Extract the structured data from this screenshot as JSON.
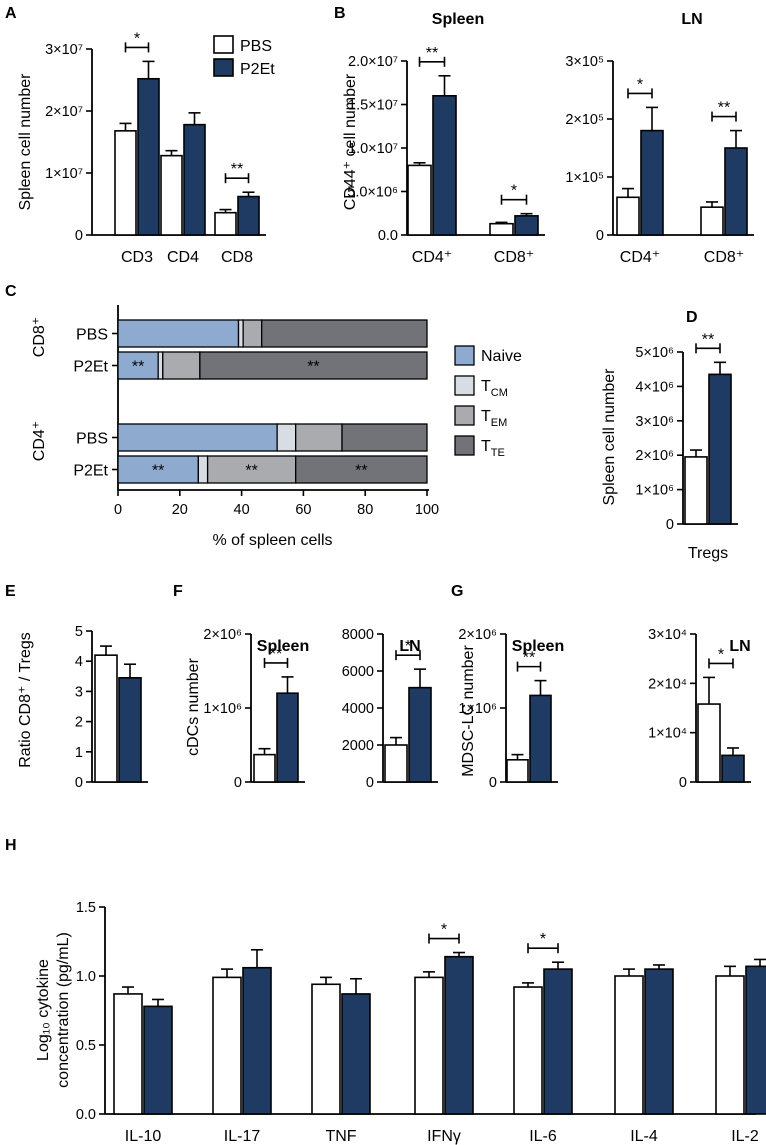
{
  "figure": {
    "palette": {
      "pbs": "#ffffff",
      "p2et": "#1f3a63",
      "naive": "#8eabcf",
      "tcm": "#d8dde3",
      "tem": "#a9abae",
      "tte": "#717378"
    }
  },
  "chart_data": [
    {
      "id": "A",
      "panel_label": "A",
      "type": "bar",
      "title": "",
      "ylabel": "Spleen cell number",
      "categories": [
        "CD3",
        "CD4",
        "CD8"
      ],
      "ylim": [
        0,
        30000000
      ],
      "yticks": [
        {
          "v": 0,
          "t": "0"
        },
        {
          "v": 10000000,
          "t": "1×10⁷"
        },
        {
          "v": 20000000,
          "t": "2×10⁷"
        },
        {
          "v": 30000000,
          "t": "3×10⁷"
        }
      ],
      "series": [
        {
          "name": "PBS",
          "values": [
            16800000,
            12800000,
            3600000
          ],
          "errors": [
            1200000,
            800000,
            500000
          ]
        },
        {
          "name": "P2Et",
          "values": [
            25200000,
            17800000,
            6200000
          ],
          "errors": [
            2800000,
            1900000,
            700000
          ]
        }
      ],
      "significance": [
        {
          "category": 0,
          "text": "*"
        },
        {
          "category": 2,
          "text": "**"
        }
      ],
      "legend": [
        "PBS",
        "P2Et"
      ]
    },
    {
      "id": "B1",
      "panel_label": "B",
      "type": "bar",
      "title": "Spleen",
      "ylabel": "CD44⁺ cell number",
      "categories": [
        "CD4⁺",
        "CD8⁺"
      ],
      "ylim": [
        0,
        20000000
      ],
      "yticks": [
        {
          "v": 0,
          "t": "0.0"
        },
        {
          "v": 5000000,
          "t": "5.0×10⁶"
        },
        {
          "v": 10000000,
          "t": "1.0×10⁷"
        },
        {
          "v": 15000000,
          "t": "1.5×10⁷"
        },
        {
          "v": 20000000,
          "t": "2.0×10⁷"
        }
      ],
      "series": [
        {
          "name": "PBS",
          "values": [
            8000000,
            1300000
          ],
          "errors": [
            300000,
            150000
          ]
        },
        {
          "name": "P2Et",
          "values": [
            16000000,
            2200000
          ],
          "errors": [
            2300000,
            250000
          ]
        }
      ],
      "significance": [
        {
          "category": 0,
          "text": "**"
        },
        {
          "category": 1,
          "text": "*"
        }
      ]
    },
    {
      "id": "B2",
      "panel_label": "",
      "type": "bar",
      "title": "LN",
      "ylabel": "",
      "categories": [
        "CD4⁺",
        "CD8⁺"
      ],
      "ylim": [
        0,
        300000
      ],
      "yticks": [
        {
          "v": 0,
          "t": "0"
        },
        {
          "v": 100000,
          "t": "1×10⁵"
        },
        {
          "v": 200000,
          "t": "2×10⁵"
        },
        {
          "v": 300000,
          "t": "3×10⁵"
        }
      ],
      "series": [
        {
          "name": "PBS",
          "values": [
            65000,
            48000
          ],
          "errors": [
            15000,
            9000
          ]
        },
        {
          "name": "P2Et",
          "values": [
            180000,
            150000
          ],
          "errors": [
            40000,
            30000
          ]
        }
      ],
      "significance": [
        {
          "category": 0,
          "text": "*"
        },
        {
          "category": 1,
          "text": "**"
        }
      ]
    },
    {
      "id": "C",
      "panel_label": "C",
      "type": "stacked-bar-horizontal",
      "xlabel": "% of spleen cells",
      "xlim": [
        0,
        100
      ],
      "xticks": [
        "0",
        "20",
        "40",
        "60",
        "80",
        "100"
      ],
      "groups": [
        "CD8⁺",
        "CD4⁺"
      ],
      "stack_keys": [
        "Naive",
        "T_CM",
        "T_EM",
        "T_TE"
      ],
      "legend": [
        {
          "main": "Naive",
          "sub": ""
        },
        {
          "main": "T",
          "sub": "CM"
        },
        {
          "main": "T",
          "sub": "EM"
        },
        {
          "main": "T",
          "sub": "TE"
        }
      ],
      "rows": [
        {
          "group": "CD8⁺",
          "label": "PBS",
          "values": [
            39,
            1.5,
            6,
            53.5
          ],
          "marks": [
            "",
            "",
            "",
            ""
          ]
        },
        {
          "group": "CD8⁺",
          "label": "P2Et",
          "values": [
            13,
            1.5,
            12,
            73.5
          ],
          "marks": [
            "**",
            "",
            "",
            "**"
          ]
        },
        {
          "group": "CD4⁺",
          "label": "PBS",
          "values": [
            51.5,
            6,
            15,
            27.5
          ],
          "marks": [
            "",
            "",
            "",
            ""
          ]
        },
        {
          "group": "CD4⁺",
          "label": "P2Et",
          "values": [
            26,
            3,
            28.5,
            42.5
          ],
          "marks": [
            "**",
            "",
            "**",
            "**"
          ]
        }
      ]
    },
    {
      "id": "D",
      "panel_label": "D",
      "type": "bar",
      "title": "",
      "ylabel": "Spleen cell number",
      "categories": [
        "Tregs"
      ],
      "ylim": [
        0,
        5000000
      ],
      "yticks": [
        {
          "v": 0,
          "t": "0"
        },
        {
          "v": 1000000,
          "t": "1×10⁶"
        },
        {
          "v": 2000000,
          "t": "2×10⁶"
        },
        {
          "v": 3000000,
          "t": "3×10⁶"
        },
        {
          "v": 4000000,
          "t": "4×10⁶"
        },
        {
          "v": 5000000,
          "t": "5×10⁶"
        }
      ],
      "series": [
        {
          "name": "PBS",
          "values": [
            1950000
          ],
          "errors": [
            200000
          ]
        },
        {
          "name": "P2Et",
          "values": [
            4350000
          ],
          "errors": [
            350000
          ]
        }
      ],
      "significance": [
        {
          "category": 0,
          "text": "**"
        }
      ]
    },
    {
      "id": "E",
      "panel_label": "E",
      "type": "bar",
      "title": "",
      "ylabel": "Ratio CD8⁺ / Tregs",
      "categories": [
        ""
      ],
      "ylim": [
        0,
        5
      ],
      "yticks": [
        {
          "v": 0,
          "t": "0"
        },
        {
          "v": 1,
          "t": "1"
        },
        {
          "v": 2,
          "t": "2"
        },
        {
          "v": 3,
          "t": "3"
        },
        {
          "v": 4,
          "t": "4"
        },
        {
          "v": 5,
          "t": "5"
        }
      ],
      "series": [
        {
          "name": "PBS",
          "values": [
            4.2
          ],
          "errors": [
            0.3
          ]
        },
        {
          "name": "P2Et",
          "values": [
            3.45
          ],
          "errors": [
            0.45
          ]
        }
      ],
      "significance": []
    },
    {
      "id": "F1",
      "panel_label": "F",
      "type": "bar",
      "title": "Spleen",
      "ylabel": "cDCs number",
      "categories": [
        ""
      ],
      "ylim": [
        0,
        2000000
      ],
      "yticks": [
        {
          "v": 0,
          "t": "0"
        },
        {
          "v": 1000000,
          "t": "1×10⁶"
        },
        {
          "v": 2000000,
          "t": "2×10⁶"
        }
      ],
      "series": [
        {
          "name": "PBS",
          "values": [
            370000
          ],
          "errors": [
            80000
          ]
        },
        {
          "name": "P2Et",
          "values": [
            1200000
          ],
          "errors": [
            220000
          ]
        }
      ],
      "significance": [
        {
          "category": 0,
          "text": "**"
        }
      ]
    },
    {
      "id": "F2",
      "panel_label": "",
      "type": "bar",
      "title": "LN",
      "ylabel": "",
      "categories": [
        ""
      ],
      "ylim": [
        0,
        8000
      ],
      "yticks": [
        {
          "v": 0,
          "t": "0"
        },
        {
          "v": 2000,
          "t": "2000"
        },
        {
          "v": 4000,
          "t": "4000"
        },
        {
          "v": 6000,
          "t": "6000"
        },
        {
          "v": 8000,
          "t": "8000"
        }
      ],
      "series": [
        {
          "name": "PBS",
          "values": [
            2000
          ],
          "errors": [
            400
          ]
        },
        {
          "name": "P2Et",
          "values": [
            5100
          ],
          "errors": [
            1000
          ]
        }
      ],
      "significance": [
        {
          "category": 0,
          "text": "*"
        }
      ]
    },
    {
      "id": "G1",
      "panel_label": "G",
      "type": "bar",
      "title": "Spleen",
      "ylabel": "MDSC-LC number",
      "categories": [
        ""
      ],
      "ylim": [
        0,
        2000000
      ],
      "yticks": [
        {
          "v": 0,
          "t": "0"
        },
        {
          "v": 1000000,
          "t": "1×10⁶"
        },
        {
          "v": 2000000,
          "t": "2×10⁶"
        }
      ],
      "series": [
        {
          "name": "PBS",
          "values": [
            300000
          ],
          "errors": [
            70000
          ]
        },
        {
          "name": "P2Et",
          "values": [
            1170000
          ],
          "errors": [
            200000
          ]
        }
      ],
      "significance": [
        {
          "category": 0,
          "text": "**"
        }
      ]
    },
    {
      "id": "G2",
      "panel_label": "",
      "type": "bar",
      "title": "LN",
      "ylabel": "",
      "categories": [
        ""
      ],
      "ylim": [
        0,
        30000
      ],
      "yticks": [
        {
          "v": 0,
          "t": "0"
        },
        {
          "v": 10000,
          "t": "1×10⁴"
        },
        {
          "v": 20000,
          "t": "2×10⁴"
        },
        {
          "v": 30000,
          "t": "3×10⁴"
        }
      ],
      "series": [
        {
          "name": "PBS",
          "values": [
            15800
          ],
          "errors": [
            5400
          ]
        },
        {
          "name": "P2Et",
          "values": [
            5400
          ],
          "errors": [
            1500
          ]
        }
      ],
      "significance": [
        {
          "category": 0,
          "text": "*"
        }
      ]
    },
    {
      "id": "H",
      "panel_label": "H",
      "type": "bar",
      "title": "",
      "ylabel": "Log₁₀ cytokine",
      "ylabel2": "concentration (pg/mL)",
      "categories": [
        "IL-10",
        "IL-17",
        "TNF",
        "IFNγ",
        "IL-6",
        "IL-4",
        "IL-2"
      ],
      "ylim": [
        0,
        1.5
      ],
      "yticks": [
        {
          "v": 0,
          "t": "0.0"
        },
        {
          "v": 0.5,
          "t": "0.5"
        },
        {
          "v": 1.0,
          "t": "1.0"
        },
        {
          "v": 1.5,
          "t": "1.5"
        }
      ],
      "series": [
        {
          "name": "PBS",
          "values": [
            0.87,
            0.99,
            0.94,
            0.99,
            0.92,
            1.0,
            1.0
          ],
          "errors": [
            0.05,
            0.06,
            0.05,
            0.04,
            0.03,
            0.05,
            0.07
          ]
        },
        {
          "name": "P2Et",
          "values": [
            0.78,
            1.06,
            0.87,
            1.14,
            1.05,
            1.05,
            1.07
          ],
          "errors": [
            0.05,
            0.13,
            0.11,
            0.03,
            0.05,
            0.03,
            0.05
          ]
        }
      ],
      "significance": [
        {
          "category": 3,
          "text": "*"
        },
        {
          "category": 4,
          "text": "*"
        }
      ]
    }
  ]
}
